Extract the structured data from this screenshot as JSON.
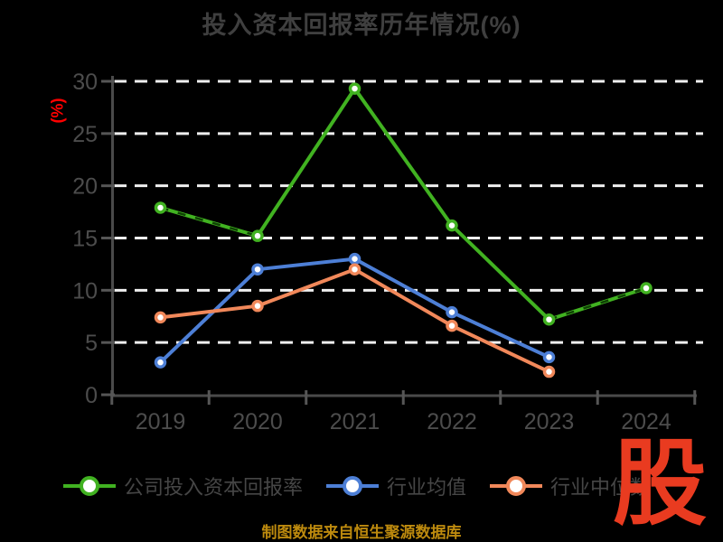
{
  "title": "投入资本回报率历年情况(%)",
  "y_axis_unit": "(%)",
  "footer_note": "制图数据来自恒生聚源数据库",
  "watermark_text": "股",
  "colors": {
    "background": "#000000",
    "title_text": "#3f3f3f",
    "axis_text": "#4c4c4c",
    "axis_line": "#4a4a4a",
    "tick_mark": "#565656",
    "gridline": "#efefef",
    "unit_label": "#ff0000",
    "footer_text": "#bd8a0e",
    "watermark": "#e93b20",
    "legend_text": "#464646",
    "marker_fill": "#ffffff"
  },
  "chart_data": {
    "type": "line",
    "title": "投入资本回报率历年情况(%)",
    "xlabel": "",
    "ylabel": "(%)",
    "categories": [
      "2019",
      "2020",
      "2021",
      "2022",
      "2023",
      "2024"
    ],
    "series": [
      {
        "name": "公司投入资本回报率",
        "color": "#41b221",
        "values": [
          17.9,
          15.2,
          29.3,
          16.2,
          7.2,
          10.2
        ]
      },
      {
        "name": "行业均值",
        "color": "#4d7fd6",
        "values": [
          3.1,
          12.0,
          13.0,
          7.9,
          3.6,
          null
        ]
      },
      {
        "name": "行业中位数",
        "color": "#f1885a",
        "values": [
          7.4,
          8.5,
          12.0,
          6.6,
          2.2,
          null
        ]
      }
    ],
    "ylim": [
      0,
      30
    ],
    "yticks": [
      0,
      5,
      10,
      15,
      20,
      25,
      30
    ],
    "grid": "horizontal-dashed-white",
    "legend_position": "bottom"
  }
}
